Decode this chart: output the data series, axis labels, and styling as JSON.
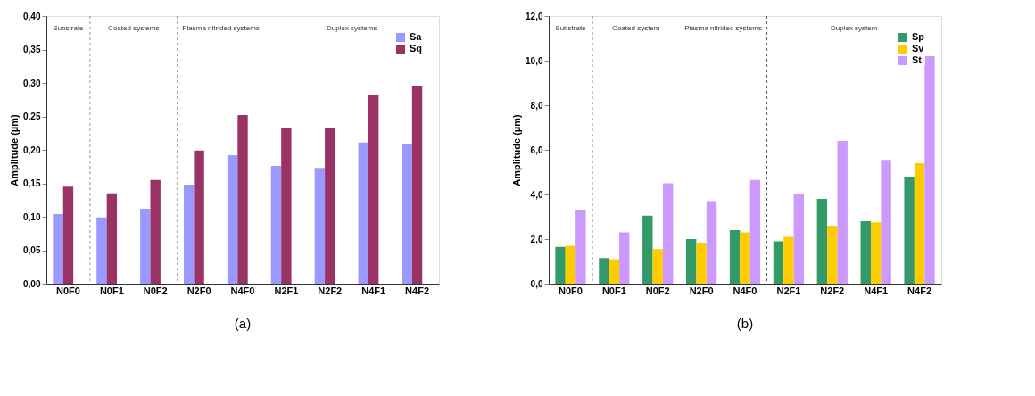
{
  "chart_data": [
    {
      "type": "bar",
      "ylabel": "Amplitude (µm)",
      "categories": [
        "N0F0",
        "N0F1",
        "N0F2",
        "N2F0",
        "N4F0",
        "N2F1",
        "N2F2",
        "N4F1",
        "N4F2"
      ],
      "series": [
        {
          "name": "Sa",
          "color": "#9999ff",
          "values": [
            0.104,
            0.099,
            0.112,
            0.148,
            0.192,
            0.176,
            0.173,
            0.211,
            0.208
          ]
        },
        {
          "name": "Sq",
          "color": "#993366",
          "values": [
            0.145,
            0.135,
            0.155,
            0.199,
            0.252,
            0.233,
            0.233,
            0.282,
            0.296
          ]
        }
      ],
      "ylim": [
        0,
        0.4
      ],
      "yticks": [
        {
          "value": 0,
          "label": "0,00"
        },
        {
          "value": 0.05,
          "label": "0,05"
        },
        {
          "value": 0.1,
          "label": "0,10"
        },
        {
          "value": 0.15,
          "label": "0,15"
        },
        {
          "value": 0.2,
          "label": "0,20"
        },
        {
          "value": 0.25,
          "label": "0,25"
        },
        {
          "value": 0.3,
          "label": "0,30"
        },
        {
          "value": 0.35,
          "label": "0,35"
        },
        {
          "value": 0.4,
          "label": "0,40"
        }
      ],
      "annotations": [
        "Substrate",
        "Coated systems",
        "Plasma nitrided systems",
        "Duplex systems",
        "(a)"
      ],
      "legend": "top right",
      "grid": false
    },
    {
      "type": "bar",
      "ylabel": "Amplitude (µm)",
      "categories": [
        "N0F0",
        "N0F1",
        "N0F2",
        "N2F0",
        "N4F0",
        "N2F1",
        "N2F2",
        "N4F1",
        "N4F2"
      ],
      "series": [
        {
          "name": "Sp",
          "color": "#339966",
          "values": [
            1.65,
            1.15,
            3.05,
            2.0,
            2.4,
            1.9,
            3.8,
            2.8,
            4.8
          ]
        },
        {
          "name": "Sv",
          "color": "#ffcc00",
          "values": [
            1.7,
            1.1,
            1.55,
            1.8,
            2.3,
            2.1,
            2.6,
            2.75,
            5.4
          ]
        },
        {
          "name": "St",
          "color": "#cc99ff",
          "values": [
            3.3,
            2.3,
            4.5,
            3.7,
            4.65,
            4.0,
            6.4,
            5.55,
            10.2
          ]
        }
      ],
      "ylim": [
        0,
        12
      ],
      "yticks": [
        {
          "value": 0,
          "label": "0,0"
        },
        {
          "value": 2,
          "label": "2,0"
        },
        {
          "value": 4,
          "label": "4,0"
        },
        {
          "value": 6,
          "label": "6,0"
        },
        {
          "value": 8,
          "label": "8,0"
        },
        {
          "value": 10,
          "label": "10,0"
        },
        {
          "value": 12,
          "label": "12,0"
        }
      ],
      "annotations": [
        "Substrate",
        "Coated system",
        "Plasma nitrided systems",
        "Duplex system",
        "(b)"
      ],
      "legend": "top right",
      "grid": false
    }
  ]
}
